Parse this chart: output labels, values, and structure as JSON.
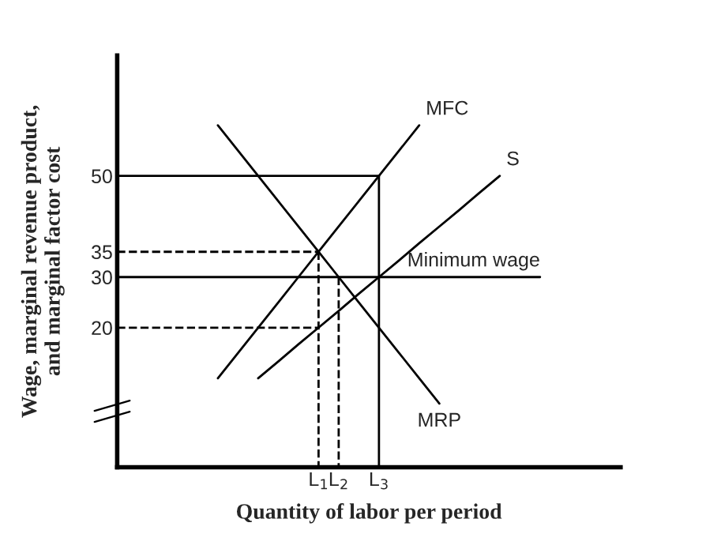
{
  "chart_data": {
    "type": "line",
    "xlabel": "Quantity of labor per period",
    "ylabel": "Wage, marginal revenue product,\nand marginal factor cost",
    "categories": [
      null,
      null,
      null,
      null,
      null,
      null,
      null,
      null,
      null,
      null,
      "L$_{1}$",
      "L$_{2}$",
      null,
      "L$_{3}$",
      null,
      null,
      null,
      null,
      null,
      null,
      null,
      null,
      null,
      null,
      null,
      null
    ],
    "ylim": [
      -7.6,
      73.8
    ],
    "yticks": [
      20,
      30,
      35,
      50
    ],
    "grid": false,
    "legend": false,
    "marker": "none",
    "series": [
      {
        "name": "MFC",
        "color": "#000000",
        "values": [
          null,
          null,
          null,
          null,
          null,
          10,
          15,
          20,
          25,
          30,
          35,
          40,
          45,
          50,
          55,
          60,
          null,
          null,
          null,
          null,
          null,
          null,
          null,
          null,
          null,
          null
        ]
      },
      {
        "name": "S",
        "color": "#000000",
        "values": [
          null,
          null,
          null,
          null,
          null,
          null,
          null,
          10,
          13.3,
          16.7,
          20,
          23.3,
          26.7,
          30,
          33.3,
          36.7,
          40,
          43.3,
          46.7,
          50,
          null,
          null,
          null,
          null,
          null,
          null
        ]
      },
      {
        "name": "MRP",
        "color": "#000000",
        "values": [
          null,
          null,
          null,
          null,
          null,
          60,
          55,
          50,
          45,
          40,
          35,
          30,
          25,
          20,
          15,
          10,
          5,
          null,
          null,
          null,
          null,
          null,
          null,
          null,
          null,
          null
        ]
      },
      {
        "name": "Minimum wage",
        "color": "#000000",
        "values": [
          30,
          30,
          30,
          30,
          30,
          30,
          30,
          30,
          30,
          30,
          30,
          30,
          30,
          30,
          30,
          30,
          30,
          30,
          30,
          30,
          30,
          30,
          null,
          null,
          null,
          null
        ]
      },
      {
        "color": "#000000",
        "line_style": "solid",
        "values": [
          50,
          50,
          50,
          50,
          50,
          50,
          50,
          50,
          50,
          50,
          50,
          50,
          50,
          50,
          null,
          null,
          null,
          null,
          null,
          null,
          null,
          null,
          null,
          null,
          null,
          null
        ]
      },
      {
        "color": "#000000",
        "line_style": "dashed",
        "values": [
          35,
          35,
          35,
          35,
          35,
          35,
          35,
          35,
          35,
          35,
          35,
          null,
          null,
          null,
          null,
          null,
          null,
          null,
          null,
          null,
          null,
          null,
          null,
          null,
          null,
          null
        ]
      },
      {
        "color": "#000000",
        "line_style": "dashed",
        "values": [
          20,
          20,
          20,
          20,
          20,
          20,
          20,
          20,
          20,
          20,
          20,
          null,
          null,
          null,
          null,
          null,
          null,
          null,
          null,
          null,
          null,
          null,
          null,
          null,
          null,
          null
        ]
      },
      {
        "color": "#000000",
        "line_style": "solid",
        "x": [
          "L$_{3}$",
          "L$_{3}$"
        ],
        "values": [
          50,
          -7.6
        ]
      },
      {
        "color": "#000000",
        "line_style": "dashed",
        "x": [
          "L$_{1}$",
          "L$_{1}$"
        ],
        "values": [
          35,
          -7.6
        ]
      },
      {
        "color": "#000000",
        "line_style": "dashed",
        "x": [
          "L$_{2}$",
          "L$_{2}$"
        ],
        "values": [
          30,
          -7.6
        ]
      }
    ]
  }
}
